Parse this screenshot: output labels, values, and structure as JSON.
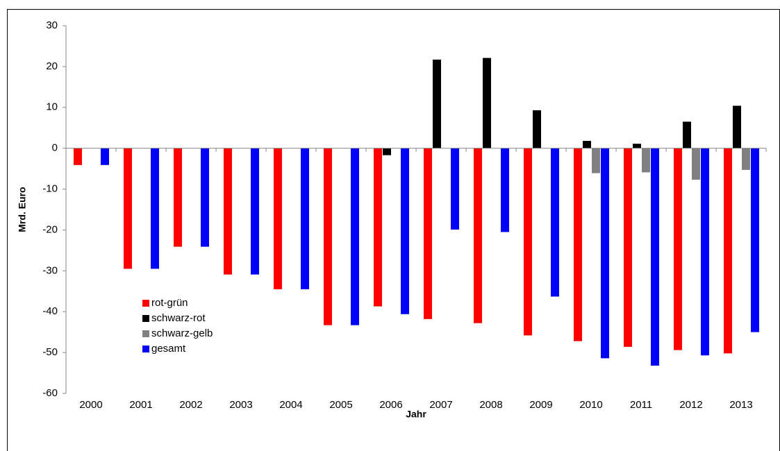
{
  "chart_data": {
    "type": "bar",
    "x_label": "Jahr",
    "y_label": "Mrd. Euro",
    "categories": [
      "2000",
      "2001",
      "2002",
      "2003",
      "2004",
      "2005",
      "2006",
      "2007",
      "2008",
      "2009",
      "2010",
      "2011",
      "2012",
      "2013"
    ],
    "series": [
      {
        "name": "rot-grün",
        "color": "#ff0000",
        "values": [
          -4.1,
          -29.5,
          -24.1,
          -30.9,
          -34.5,
          -43.3,
          -38.7,
          -41.8,
          -42.8,
          -45.8,
          -47.2,
          -48.6,
          -49.4,
          -50.2
        ]
      },
      {
        "name": "schwarz-rot",
        "color": "#000000",
        "values": [
          null,
          null,
          null,
          null,
          null,
          null,
          -1.7,
          21.7,
          22.1,
          9.3,
          1.8,
          1.1,
          6.5,
          10.4
        ]
      },
      {
        "name": "schwarz-gelb",
        "color": "#808080",
        "values": [
          null,
          null,
          null,
          null,
          null,
          null,
          null,
          null,
          null,
          null,
          -6.1,
          -5.9,
          -7.7,
          -5.3
        ]
      },
      {
        "name": "gesamt",
        "color": "#0000ff",
        "values": [
          -4.1,
          -29.5,
          -24.1,
          -30.9,
          -34.5,
          -43.3,
          -40.6,
          -19.9,
          -20.5,
          -36.3,
          -51.4,
          -53.2,
          -50.7,
          -45.0
        ]
      }
    ],
    "ylim": [
      -60,
      30
    ],
    "yticks": [
      -60,
      -50,
      -40,
      -30,
      -20,
      -10,
      0,
      10,
      20,
      30
    ],
    "legend": "lower-left"
  }
}
